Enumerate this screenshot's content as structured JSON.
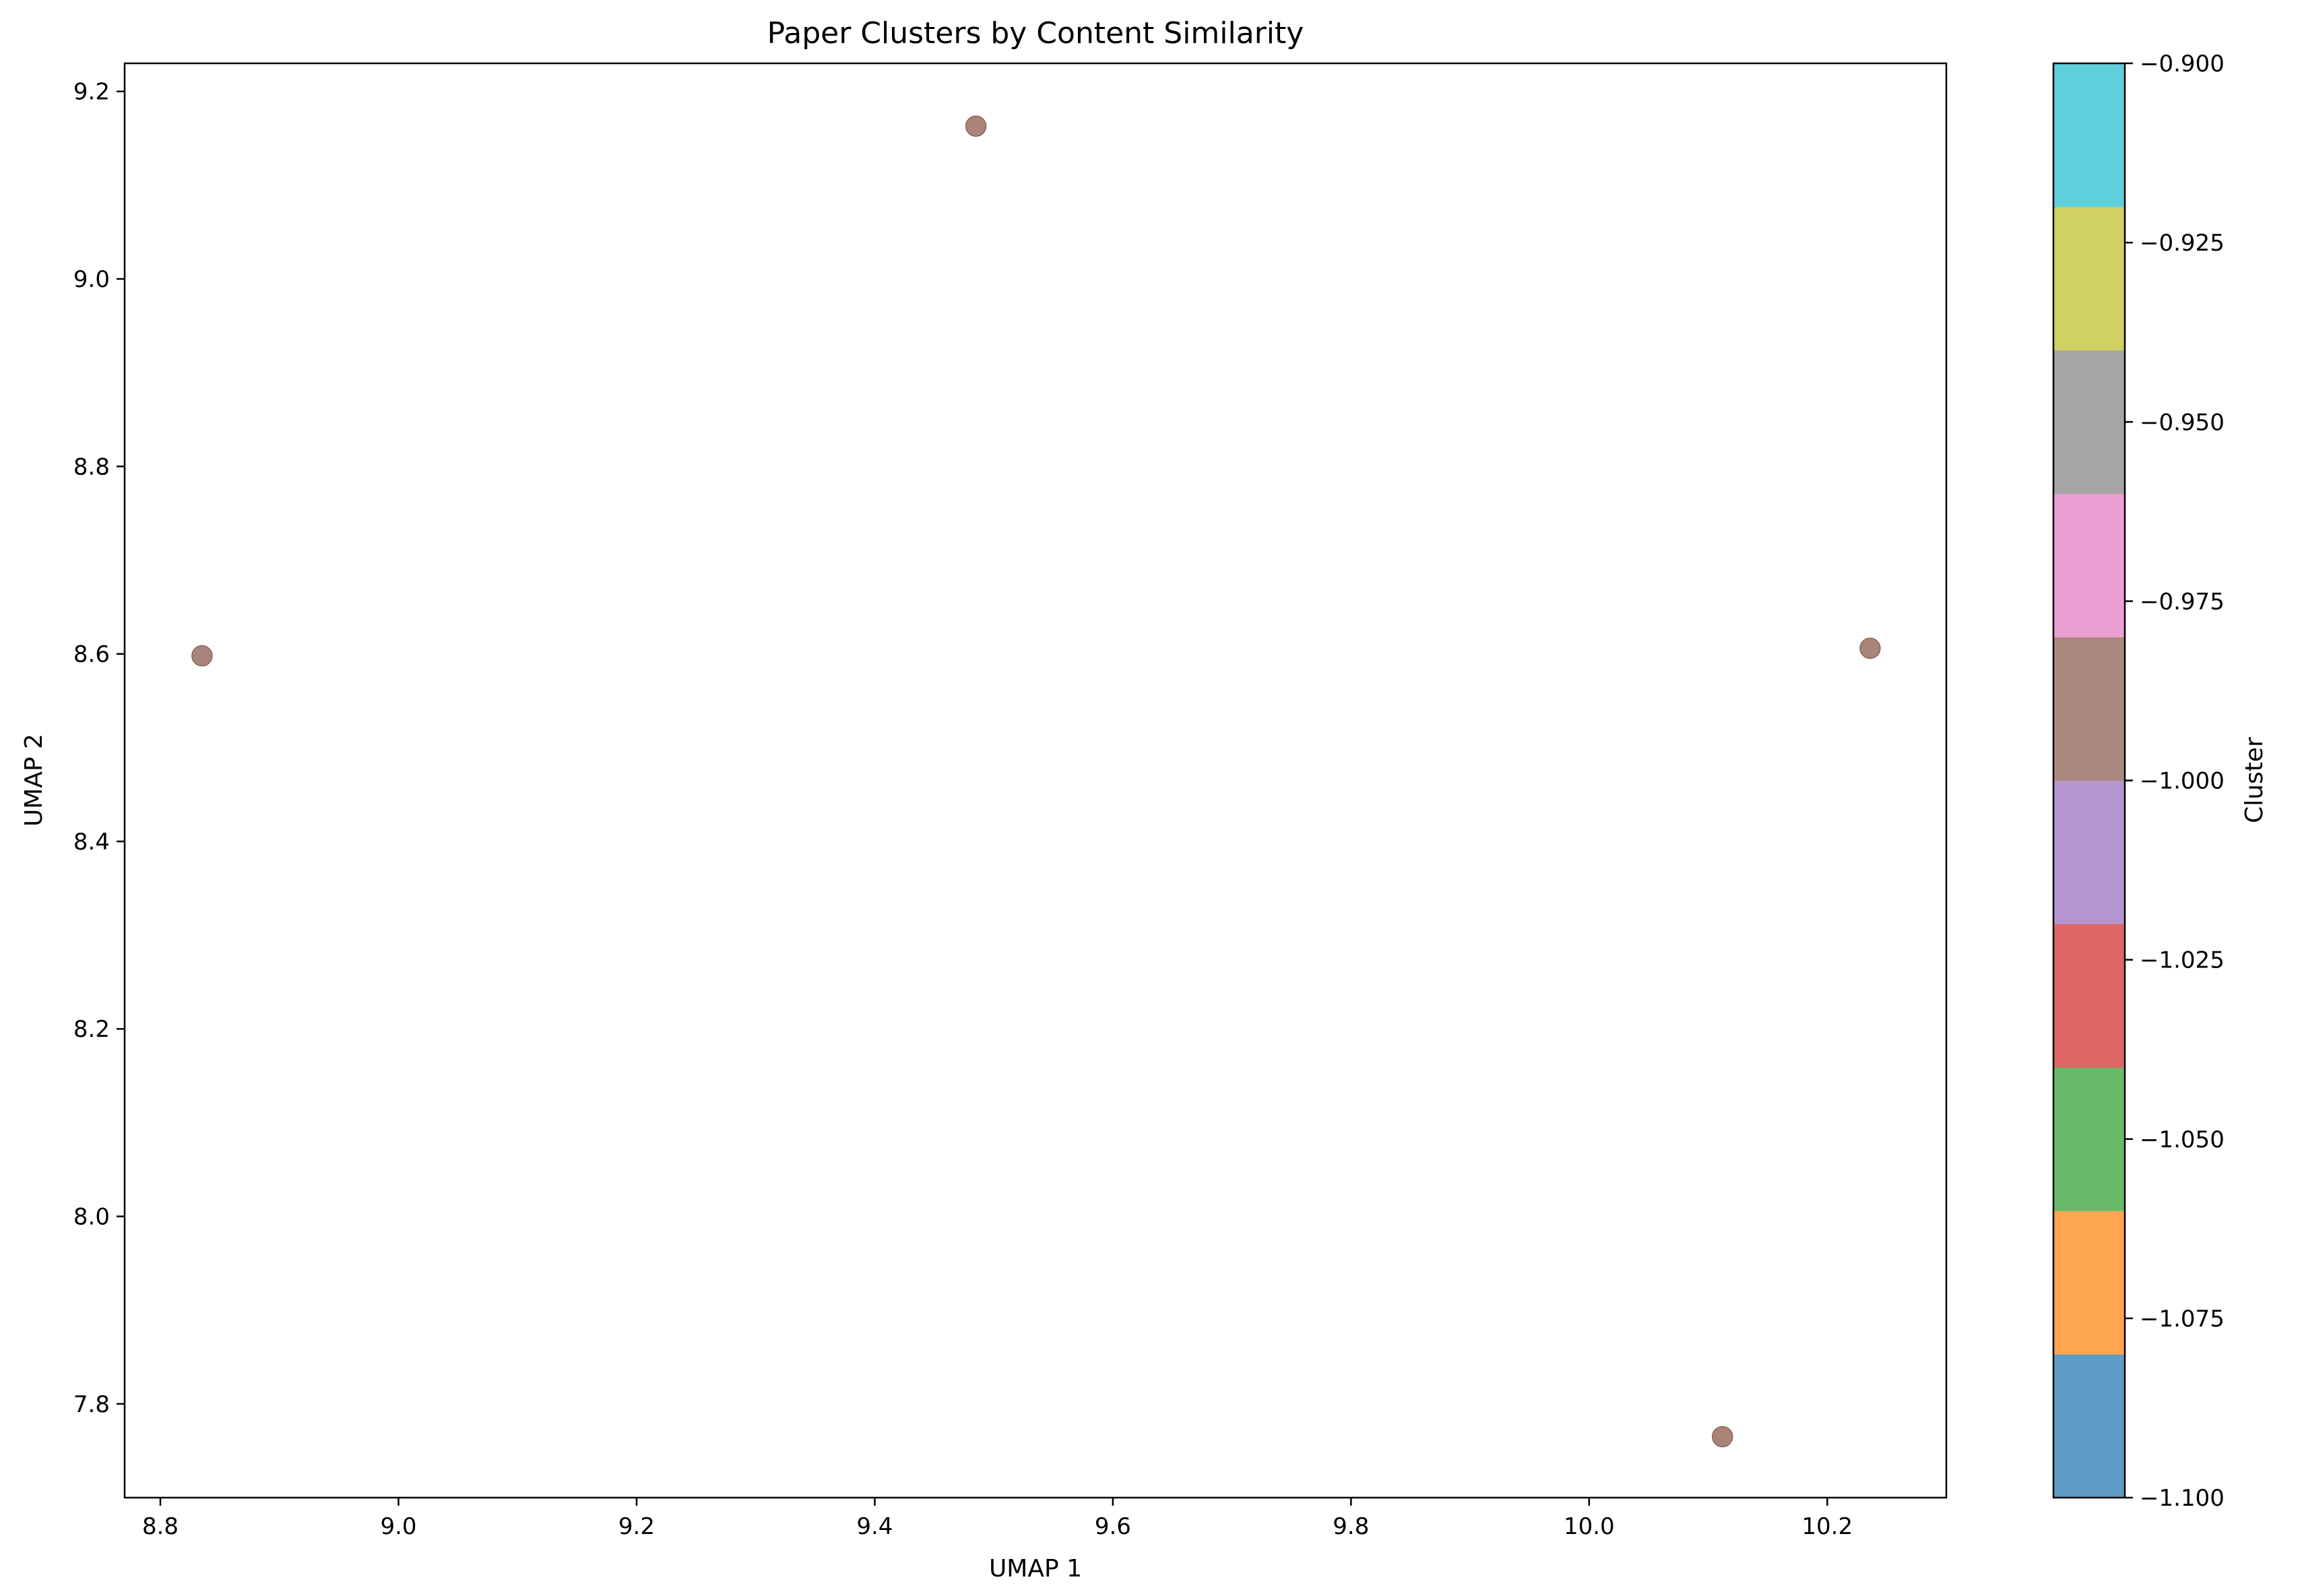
{
  "chart_data": {
    "type": "scatter",
    "title": "Paper Clusters by Content Similarity",
    "xlabel": "UMAP 1",
    "ylabel": "UMAP 2",
    "xlim": [
      8.77,
      10.3
    ],
    "ylim": [
      7.7,
      9.23
    ],
    "xticks": [
      8.8,
      9.0,
      9.2,
      9.4,
      9.6,
      9.8,
      10.0,
      10.2
    ],
    "yticks": [
      7.8,
      8.0,
      8.2,
      8.4,
      8.6,
      8.8,
      9.0,
      9.2
    ],
    "grid": false,
    "points": [
      {
        "x": 8.835,
        "y": 8.598,
        "cluster": -1
      },
      {
        "x": 9.485,
        "y": 9.163,
        "cluster": -1
      },
      {
        "x": 10.236,
        "y": 8.606,
        "cluster": -1
      },
      {
        "x": 10.112,
        "y": 7.765,
        "cluster": -1
      }
    ],
    "point_color": "#a57d71",
    "colorbar": {
      "label": "Cluster",
      "range": [
        -1.1,
        -0.9
      ],
      "ticks": [
        -0.9,
        -0.925,
        -0.95,
        -0.975,
        -1.0,
        -1.025,
        -1.05,
        -1.075,
        -1.1
      ],
      "tick_labels": [
        "−0.900",
        "−0.925",
        "−0.950",
        "−0.975",
        "−1.000",
        "−1.025",
        "−1.050",
        "−1.075",
        "−1.100"
      ],
      "colors": [
        "#5f9cc8",
        "#fda551",
        "#68ba68",
        "#e06566",
        "#b595cf",
        "#ab887e",
        "#eb9fd3",
        "#a5a5a5",
        "#d1d063",
        "#5fcfdb"
      ]
    }
  }
}
